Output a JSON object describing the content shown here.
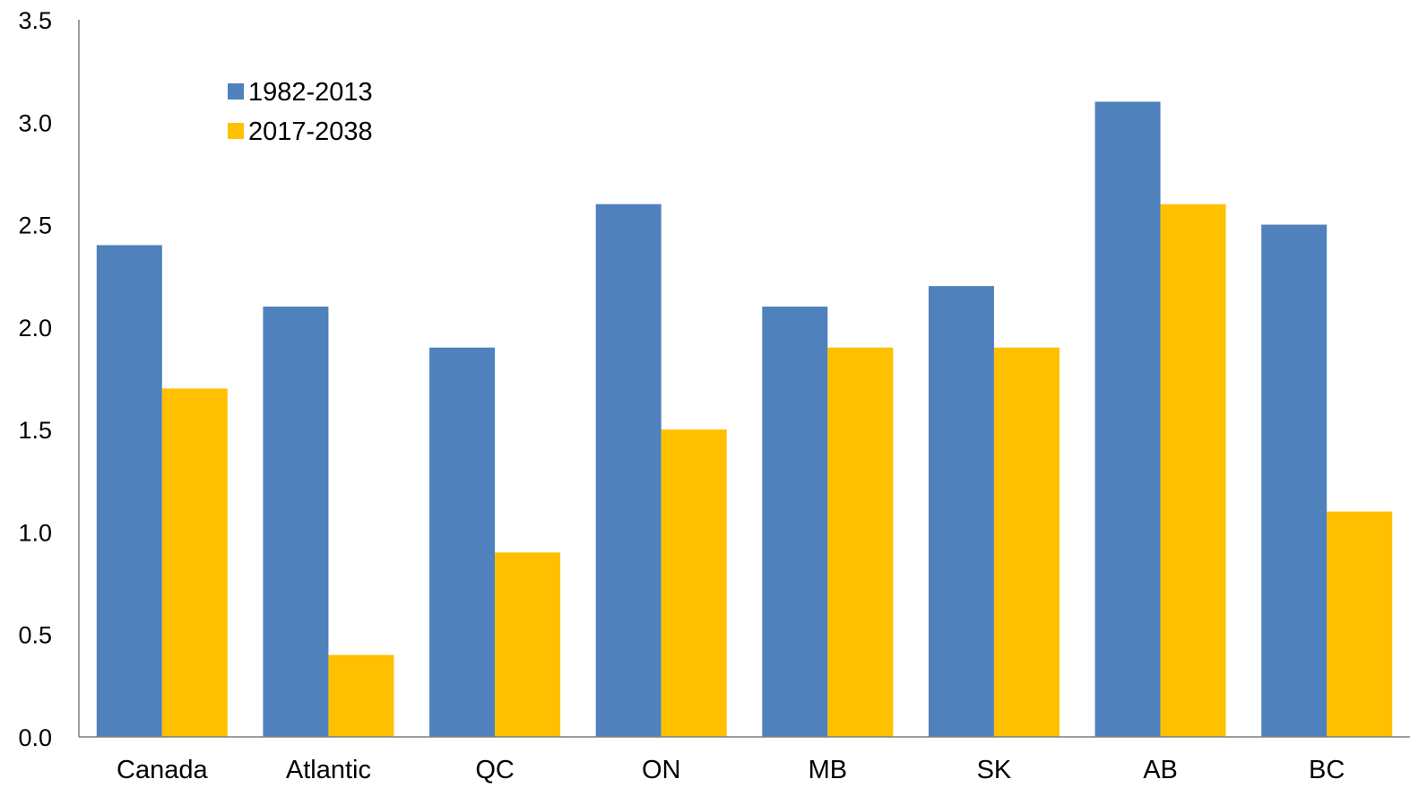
{
  "chart_data": {
    "type": "bar",
    "categories": [
      "Canada",
      "Atlantic",
      "QC",
      "ON",
      "MB",
      "SK",
      "AB",
      "BC"
    ],
    "series": [
      {
        "name": "1982-2013",
        "color": "#4f81bd",
        "values": [
          2.4,
          2.1,
          1.9,
          2.6,
          2.1,
          2.2,
          3.1,
          2.5
        ]
      },
      {
        "name": "2017-2038",
        "color": "#ffc000",
        "values": [
          1.7,
          0.4,
          0.9,
          1.5,
          1.9,
          1.9,
          2.6,
          1.1
        ]
      }
    ],
    "y_ticks": [
      "0.0",
      "0.5",
      "1.0",
      "1.5",
      "2.0",
      "2.5",
      "3.0",
      "3.5"
    ],
    "ylim": [
      0,
      3.5
    ],
    "title": "",
    "xlabel": "",
    "ylabel": "",
    "grid": false,
    "legend_position": "top-left"
  }
}
